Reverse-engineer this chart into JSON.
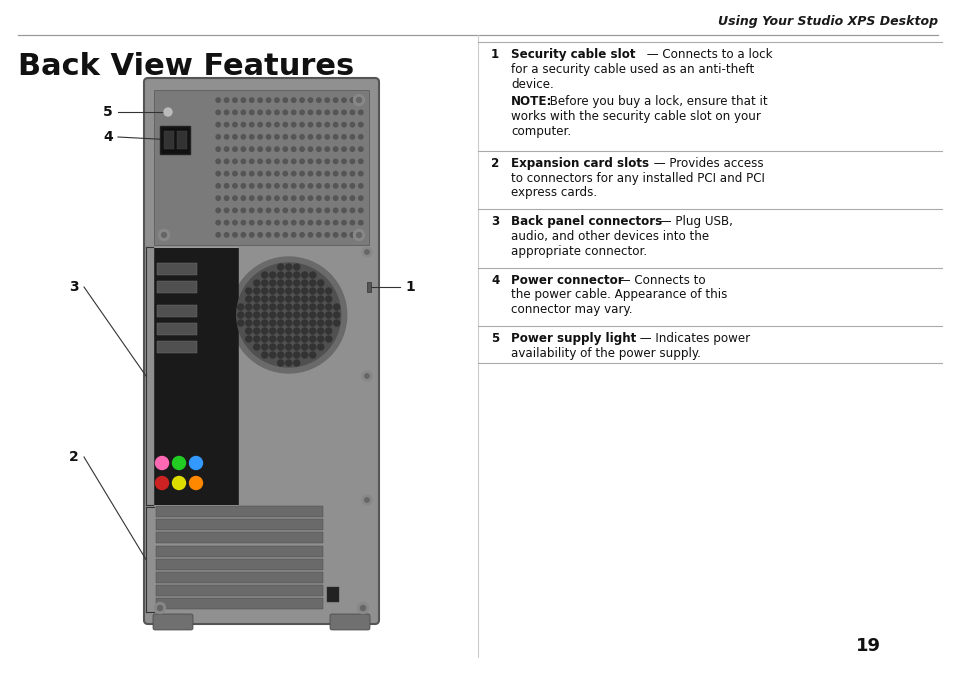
{
  "bg_color": "#ffffff",
  "header_text": "Using Your Studio XPS Desktop",
  "title": "Back View Features",
  "page_number": "19",
  "items": [
    {
      "num": "1",
      "bold": "Security cable slot",
      "rest": " — Connects to a lock\nfor a security cable used as an anti-theft\ndevice.",
      "note_bold": "NOTE:",
      "note_rest": " Before you buy a lock, ensure that it\nworks with the security cable slot on your\ncomputer."
    },
    {
      "num": "2",
      "bold": "Expansion card slots",
      "rest": " — Provides access\nto connectors for any installed PCI and PCI\nexpress cards.",
      "note_bold": "",
      "note_rest": ""
    },
    {
      "num": "3",
      "bold": "Back panel connectors",
      "rest": " — Plug USB,\naudio, and other devices into the\nappropriate connector.",
      "note_bold": "",
      "note_rest": ""
    },
    {
      "num": "4",
      "bold": "Power connector",
      "rest": " — Connects to\nthe power cable. Appearance of this\nconnector may vary.",
      "note_bold": "",
      "note_rest": ""
    },
    {
      "num": "5",
      "bold": "Power supply light",
      "rest": " — Indicates power\navailability of the power supply.",
      "note_bold": "",
      "note_rest": ""
    }
  ]
}
